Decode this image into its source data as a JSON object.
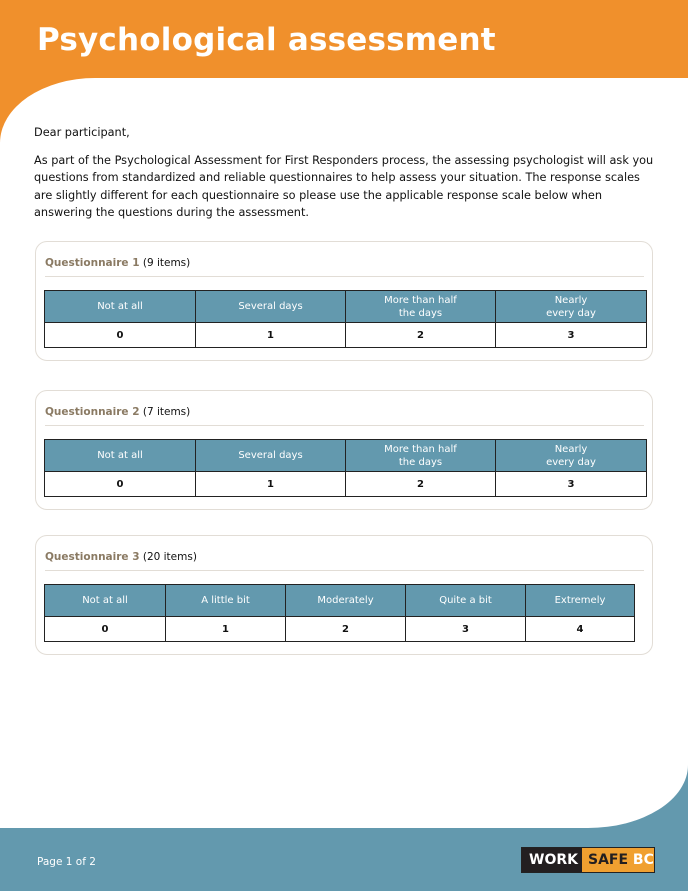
{
  "header": {
    "title": "Psychological assessment"
  },
  "intro": {
    "greeting": "Dear participant,",
    "body": "As part of the Psychological Assessment for First Responders process, the assessing psychologist will ask you questions from standardized and reliable questionnaires to help assess your situation. The response scales are slightly different for each questionnaire so please use the applicable response scale below when answering the questions during the assessment."
  },
  "questionnaires": [
    {
      "name": "Questionnaire 1",
      "count": "(9 items)",
      "headers": [
        "Not at all",
        "Several days",
        "More than half\nthe days",
        "Nearly\nevery day"
      ],
      "values": [
        "0",
        "1",
        "2",
        "3"
      ]
    },
    {
      "name": "Questionnaire 2",
      "count": "(7 items)",
      "headers": [
        "Not at all",
        "Several days",
        "More than half\nthe days",
        "Nearly\nevery day"
      ],
      "values": [
        "0",
        "1",
        "2",
        "3"
      ]
    },
    {
      "name": "Questionnaire 3",
      "count": "(20 items)",
      "headers": [
        "Not at all",
        "A little bit",
        "Moderately",
        "Quite a bit",
        "Extremely"
      ],
      "values": [
        "0",
        "1",
        "2",
        "3",
        "4"
      ]
    }
  ],
  "footer": {
    "page": "Page 1 of 2",
    "logo": "WORKSAFEBC"
  },
  "colors": {
    "orange": "#F0902C",
    "blue": "#6399AE",
    "label": "#8a7a63"
  }
}
